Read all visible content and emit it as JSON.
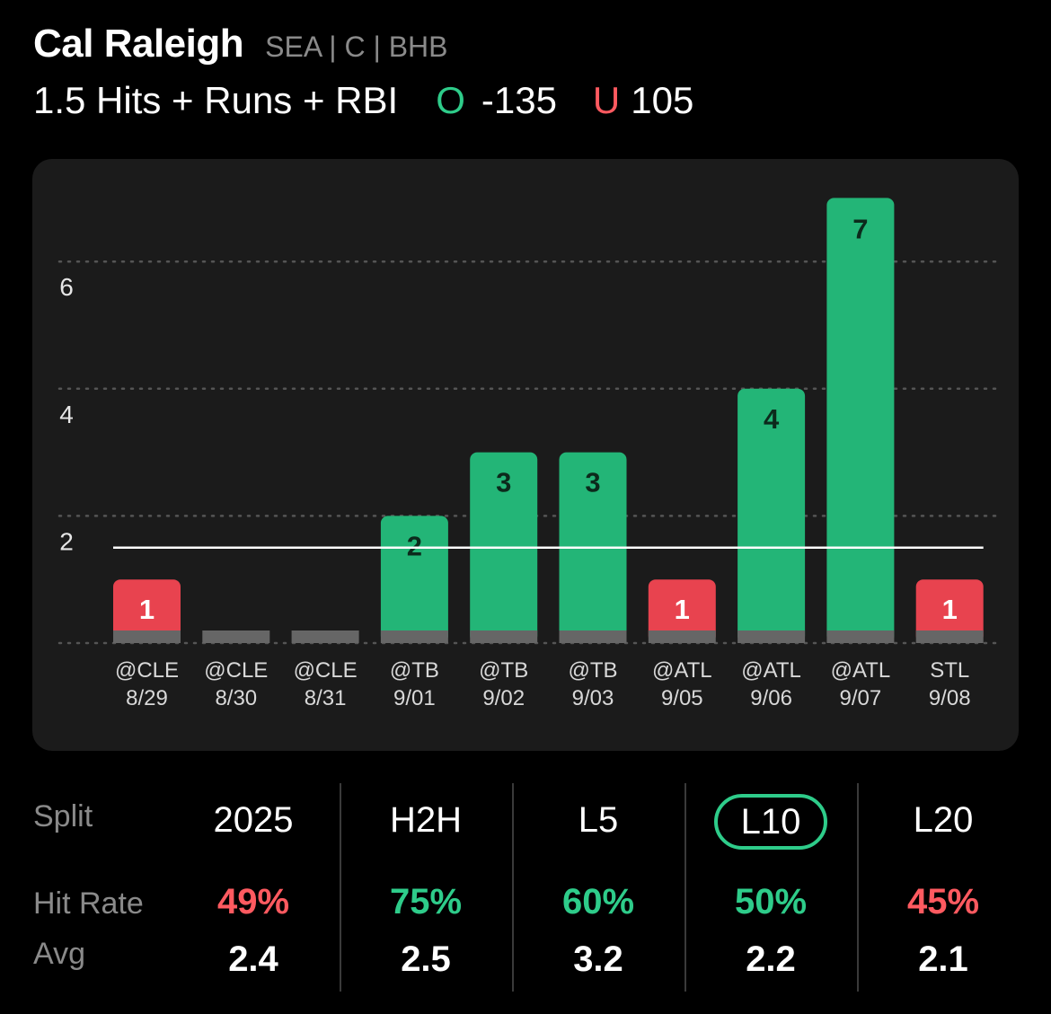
{
  "header": {
    "player_name": "Cal Raleigh",
    "meta": "SEA | C | BHB",
    "prop": "1.5 Hits + Runs + RBI",
    "over_mark": "O",
    "over_odds": "-135",
    "under_mark": "U",
    "under_odds": "105"
  },
  "colors": {
    "over": "#23b577",
    "under": "#e8434f",
    "zero": "#666666",
    "card": "#1b1b1b"
  },
  "chart_data": {
    "type": "bar",
    "line": 1.5,
    "ylim": [
      0,
      7
    ],
    "yticks": [
      2,
      4,
      6
    ],
    "grid": true,
    "categories": [
      {
        "opponent": "@CLE",
        "date": "8/29"
      },
      {
        "opponent": "@CLE",
        "date": "8/30"
      },
      {
        "opponent": "@CLE",
        "date": "8/31"
      },
      {
        "opponent": "@TB",
        "date": "9/01"
      },
      {
        "opponent": "@TB",
        "date": "9/02"
      },
      {
        "opponent": "@TB",
        "date": "9/03"
      },
      {
        "opponent": "@ATL",
        "date": "9/05"
      },
      {
        "opponent": "@ATL",
        "date": "9/06"
      },
      {
        "opponent": "@ATL",
        "date": "9/07"
      },
      {
        "opponent": "STL",
        "date": "9/08"
      }
    ],
    "values": [
      1,
      0,
      0,
      2,
      3,
      3,
      1,
      4,
      7,
      1
    ]
  },
  "splits": {
    "row_labels": {
      "split": "Split",
      "hit_rate": "Hit Rate",
      "avg": "Avg"
    },
    "columns": [
      {
        "label": "2025",
        "hit_rate": "49%",
        "avg": "2.4",
        "hit_color": "#ff5a60",
        "active": false
      },
      {
        "label": "H2H",
        "hit_rate": "75%",
        "avg": "2.5",
        "hit_color": "#2ecc8a",
        "active": false
      },
      {
        "label": "L5",
        "hit_rate": "60%",
        "avg": "3.2",
        "hit_color": "#2ecc8a",
        "active": false
      },
      {
        "label": "L10",
        "hit_rate": "50%",
        "avg": "2.2",
        "hit_color": "#2ecc8a",
        "active": true
      },
      {
        "label": "L20",
        "hit_rate": "45%",
        "avg": "2.1",
        "hit_color": "#ff5a60",
        "active": false
      }
    ]
  }
}
